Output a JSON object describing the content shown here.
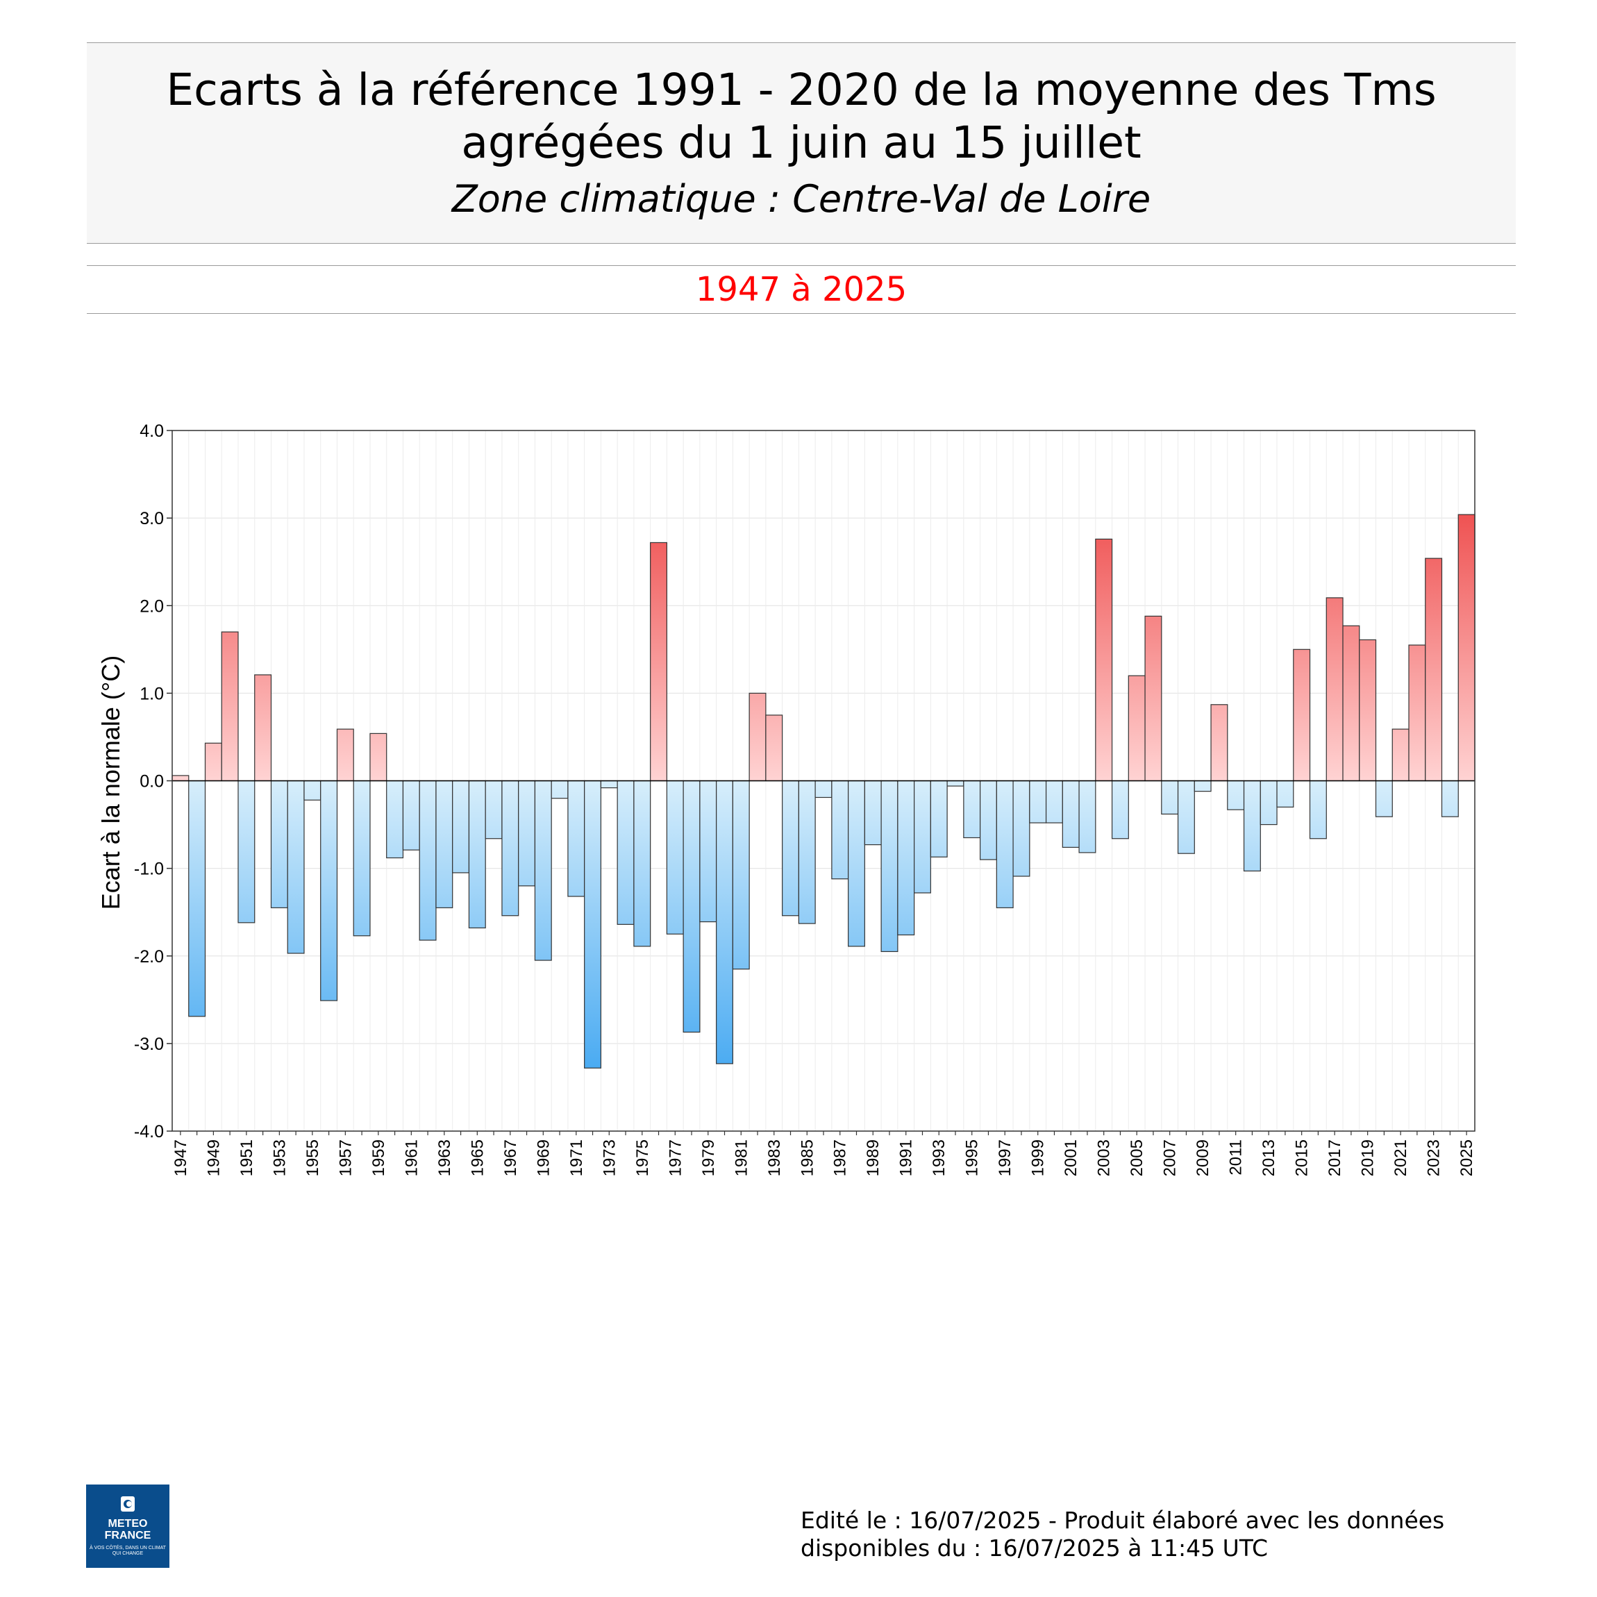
{
  "header": {
    "title_line1": "Ecarts à la référence 1991 - 2020 de la moyenne des Tms",
    "title_line2": "agrégées du 1 juin au 15 juillet",
    "subtitle": "Zone climatique : Centre-Val de Loire",
    "period": "1947 à 2025"
  },
  "chart_data": {
    "type": "bar",
    "ylabel": "Ecart à la normale (°C)",
    "xlabel": "",
    "ylim": [
      -4.0,
      4.0
    ],
    "yticks": [
      "-4.0",
      "-3.0",
      "-2.0",
      "-1.0",
      "0.0",
      "1.0",
      "2.0",
      "3.0",
      "4.0"
    ],
    "grid": true,
    "colors": {
      "positive_light": "#ffd3d3",
      "positive_dark": "#ea2a2a",
      "negative_light": "#d7eefb",
      "negative_dark": "#2b9cf0"
    },
    "categories": [
      "1947",
      "1948",
      "1949",
      "1950",
      "1951",
      "1952",
      "1953",
      "1954",
      "1955",
      "1956",
      "1957",
      "1958",
      "1959",
      "1960",
      "1961",
      "1962",
      "1963",
      "1964",
      "1965",
      "1966",
      "1967",
      "1968",
      "1969",
      "1970",
      "1971",
      "1972",
      "1973",
      "1974",
      "1975",
      "1976",
      "1977",
      "1978",
      "1979",
      "1980",
      "1981",
      "1982",
      "1983",
      "1984",
      "1985",
      "1986",
      "1987",
      "1988",
      "1989",
      "1990",
      "1991",
      "1992",
      "1993",
      "1994",
      "1995",
      "1996",
      "1997",
      "1998",
      "1999",
      "2000",
      "2001",
      "2002",
      "2003",
      "2004",
      "2005",
      "2006",
      "2007",
      "2008",
      "2009",
      "2010",
      "2011",
      "2012",
      "2013",
      "2014",
      "2015",
      "2016",
      "2017",
      "2018",
      "2019",
      "2020",
      "2021",
      "2022",
      "2023",
      "2024",
      "2025"
    ],
    "values": [
      0.06,
      -2.69,
      0.43,
      1.7,
      -1.62,
      1.21,
      -1.45,
      -1.97,
      -0.22,
      -2.51,
      0.59,
      -1.77,
      0.54,
      -0.88,
      -0.79,
      -1.82,
      -1.45,
      -1.05,
      -1.68,
      -0.66,
      -1.54,
      -1.2,
      -2.05,
      -0.2,
      -1.32,
      -3.28,
      -0.08,
      -1.64,
      -1.89,
      2.72,
      -1.75,
      -2.87,
      -1.61,
      -3.23,
      -2.15,
      1.0,
      0.75,
      -1.54,
      -1.63,
      -0.19,
      -1.12,
      -1.89,
      -0.73,
      -1.95,
      -1.76,
      -1.28,
      -0.87,
      -0.06,
      -0.65,
      -0.9,
      -1.45,
      -1.09,
      -0.48,
      -0.48,
      -0.76,
      -0.82,
      2.76,
      -0.66,
      1.2,
      1.88,
      -0.38,
      -0.83,
      -0.12,
      0.87,
      -0.33,
      -1.03,
      -0.5,
      -0.3,
      1.5,
      -0.66,
      2.09,
      1.77,
      1.61,
      -0.41,
      0.59,
      1.55,
      2.54,
      -0.41,
      3.04
    ]
  },
  "logo": {
    "line1": "METEO",
    "line2": "FRANCE",
    "tagline": "À VOS CÔTÉS, DANS UN CLIMAT QUI CHANGE",
    "color": "#0a4d8c"
  },
  "footer": {
    "line1": "Edité le : 16/07/2025 - Produit élaboré avec les données",
    "line2": "disponibles du : 16/07/2025 à 11:45 UTC"
  }
}
